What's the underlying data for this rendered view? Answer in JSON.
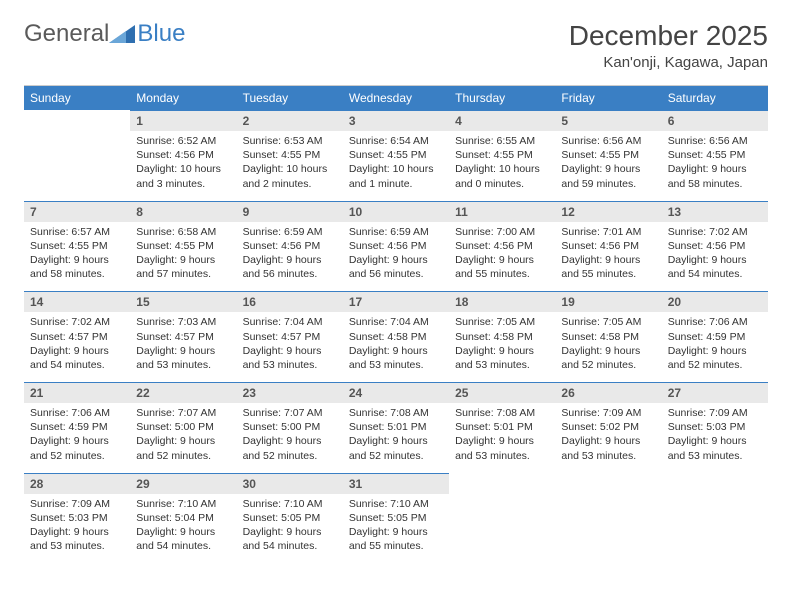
{
  "brand": {
    "general": "General",
    "blue": "Blue"
  },
  "title": "December 2025",
  "location": "Kan'onji, Kagawa, Japan",
  "colors": {
    "accent": "#3a7fc4",
    "daynum_bg": "#e9e9e9",
    "text": "#333333",
    "border": "#cccccc"
  },
  "day_names": [
    "Sunday",
    "Monday",
    "Tuesday",
    "Wednesday",
    "Thursday",
    "Friday",
    "Saturday"
  ],
  "weeks": [
    [
      {
        "blank": true
      },
      {
        "n": "1",
        "sr": "6:52 AM",
        "ss": "4:56 PM",
        "dl": "10 hours and 3 minutes."
      },
      {
        "n": "2",
        "sr": "6:53 AM",
        "ss": "4:55 PM",
        "dl": "10 hours and 2 minutes."
      },
      {
        "n": "3",
        "sr": "6:54 AM",
        "ss": "4:55 PM",
        "dl": "10 hours and 1 minute."
      },
      {
        "n": "4",
        "sr": "6:55 AM",
        "ss": "4:55 PM",
        "dl": "10 hours and 0 minutes."
      },
      {
        "n": "5",
        "sr": "6:56 AM",
        "ss": "4:55 PM",
        "dl": "9 hours and 59 minutes."
      },
      {
        "n": "6",
        "sr": "6:56 AM",
        "ss": "4:55 PM",
        "dl": "9 hours and 58 minutes."
      }
    ],
    [
      {
        "n": "7",
        "sr": "6:57 AM",
        "ss": "4:55 PM",
        "dl": "9 hours and 58 minutes."
      },
      {
        "n": "8",
        "sr": "6:58 AM",
        "ss": "4:55 PM",
        "dl": "9 hours and 57 minutes."
      },
      {
        "n": "9",
        "sr": "6:59 AM",
        "ss": "4:56 PM",
        "dl": "9 hours and 56 minutes."
      },
      {
        "n": "10",
        "sr": "6:59 AM",
        "ss": "4:56 PM",
        "dl": "9 hours and 56 minutes."
      },
      {
        "n": "11",
        "sr": "7:00 AM",
        "ss": "4:56 PM",
        "dl": "9 hours and 55 minutes."
      },
      {
        "n": "12",
        "sr": "7:01 AM",
        "ss": "4:56 PM",
        "dl": "9 hours and 55 minutes."
      },
      {
        "n": "13",
        "sr": "7:02 AM",
        "ss": "4:56 PM",
        "dl": "9 hours and 54 minutes."
      }
    ],
    [
      {
        "n": "14",
        "sr": "7:02 AM",
        "ss": "4:57 PM",
        "dl": "9 hours and 54 minutes."
      },
      {
        "n": "15",
        "sr": "7:03 AM",
        "ss": "4:57 PM",
        "dl": "9 hours and 53 minutes."
      },
      {
        "n": "16",
        "sr": "7:04 AM",
        "ss": "4:57 PM",
        "dl": "9 hours and 53 minutes."
      },
      {
        "n": "17",
        "sr": "7:04 AM",
        "ss": "4:58 PM",
        "dl": "9 hours and 53 minutes."
      },
      {
        "n": "18",
        "sr": "7:05 AM",
        "ss": "4:58 PM",
        "dl": "9 hours and 53 minutes."
      },
      {
        "n": "19",
        "sr": "7:05 AM",
        "ss": "4:58 PM",
        "dl": "9 hours and 52 minutes."
      },
      {
        "n": "20",
        "sr": "7:06 AM",
        "ss": "4:59 PM",
        "dl": "9 hours and 52 minutes."
      }
    ],
    [
      {
        "n": "21",
        "sr": "7:06 AM",
        "ss": "4:59 PM",
        "dl": "9 hours and 52 minutes."
      },
      {
        "n": "22",
        "sr": "7:07 AM",
        "ss": "5:00 PM",
        "dl": "9 hours and 52 minutes."
      },
      {
        "n": "23",
        "sr": "7:07 AM",
        "ss": "5:00 PM",
        "dl": "9 hours and 52 minutes."
      },
      {
        "n": "24",
        "sr": "7:08 AM",
        "ss": "5:01 PM",
        "dl": "9 hours and 52 minutes."
      },
      {
        "n": "25",
        "sr": "7:08 AM",
        "ss": "5:01 PM",
        "dl": "9 hours and 53 minutes."
      },
      {
        "n": "26",
        "sr": "7:09 AM",
        "ss": "5:02 PM",
        "dl": "9 hours and 53 minutes."
      },
      {
        "n": "27",
        "sr": "7:09 AM",
        "ss": "5:03 PM",
        "dl": "9 hours and 53 minutes."
      }
    ],
    [
      {
        "n": "28",
        "sr": "7:09 AM",
        "ss": "5:03 PM",
        "dl": "9 hours and 53 minutes."
      },
      {
        "n": "29",
        "sr": "7:10 AM",
        "ss": "5:04 PM",
        "dl": "9 hours and 54 minutes."
      },
      {
        "n": "30",
        "sr": "7:10 AM",
        "ss": "5:05 PM",
        "dl": "9 hours and 54 minutes."
      },
      {
        "n": "31",
        "sr": "7:10 AM",
        "ss": "5:05 PM",
        "dl": "9 hours and 55 minutes."
      },
      {
        "blank": true
      },
      {
        "blank": true
      },
      {
        "blank": true
      }
    ]
  ],
  "labels": {
    "sunrise": "Sunrise: ",
    "sunset": "Sunset: ",
    "daylight": "Daylight: "
  }
}
